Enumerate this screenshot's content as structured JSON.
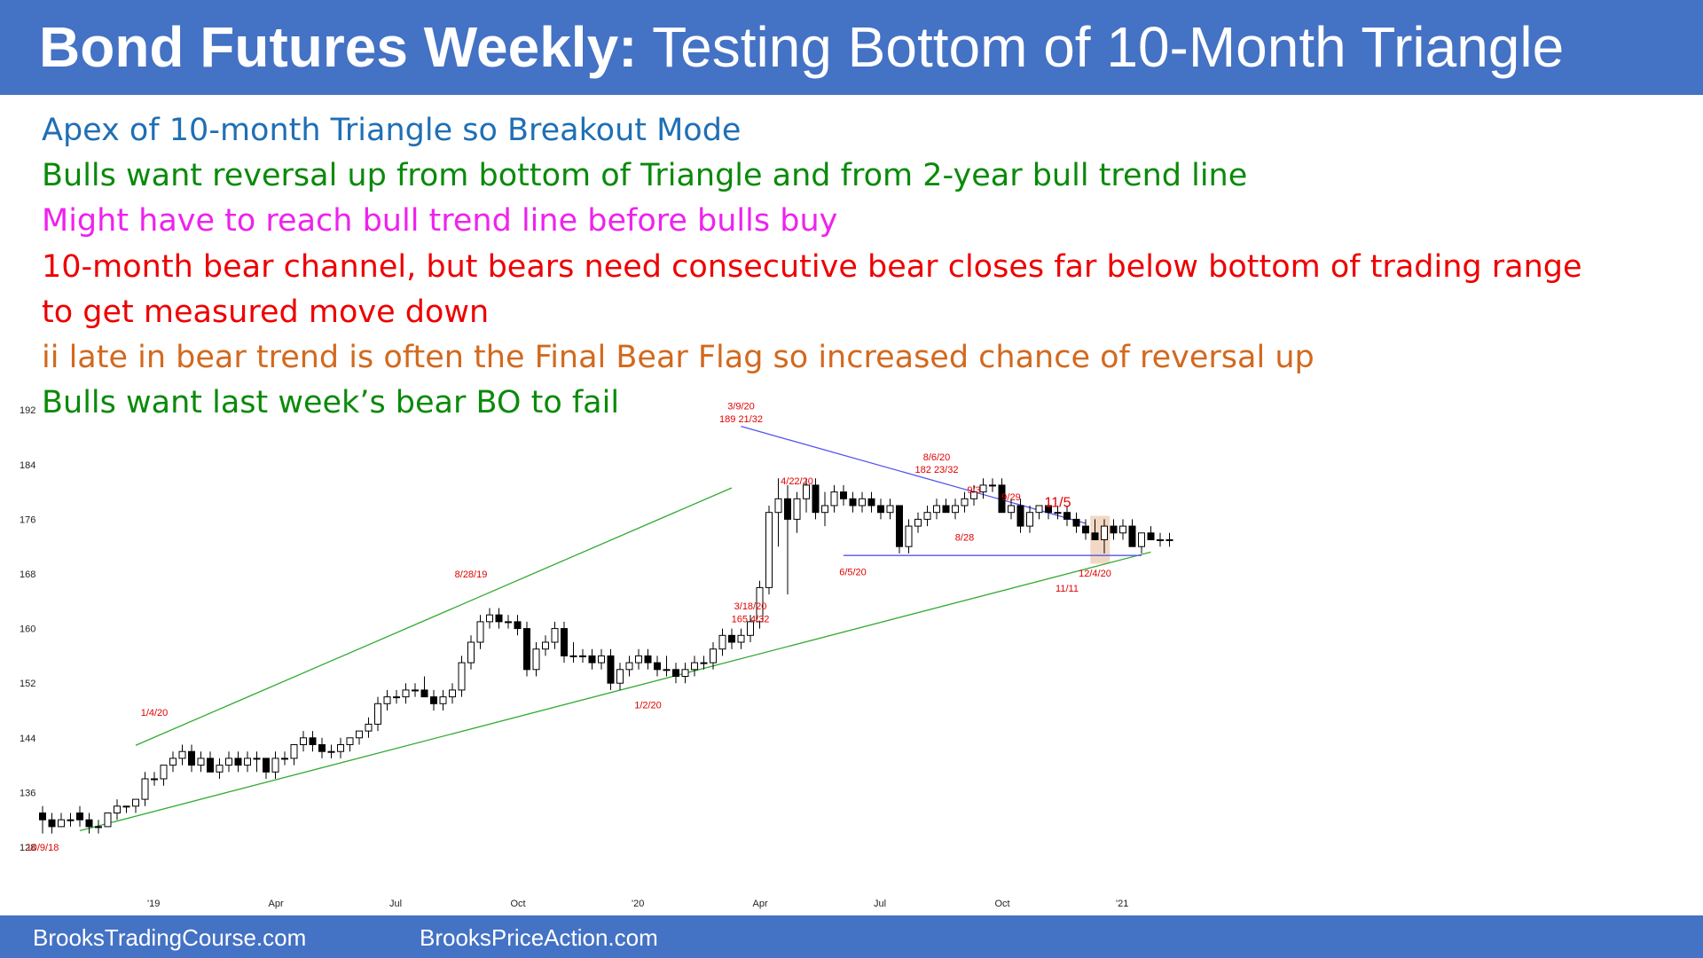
{
  "header": {
    "title_bold": "Bond Futures Weekly:",
    "title_rest": " Testing Bottom of 10-Month Triangle",
    "bg_color": "#4472c4"
  },
  "bullets": [
    {
      "text": "Apex of 10-month Triangle so Breakout Mode",
      "color": "#1f6fb5"
    },
    {
      "text": "Bulls want reversal up from bottom of Triangle and from 2-year bull trend line",
      "color": "#0a8a0a"
    },
    {
      "text": "Might have to reach bull trend line before bulls buy",
      "color": "#ee22ee"
    },
    {
      "text": "10-month bear channel, but bears need consecutive bear closes far below bottom of trading range",
      "color": "#ee0000"
    },
    {
      "text": "to get measured move down",
      "color": "#ee0000"
    },
    {
      "text": "ii late in bear trend is often the Final Bear Flag so increased chance of reversal up",
      "color": "#d2691e"
    },
    {
      "text": "Bulls want last week’s bear BO to fail",
      "color": "#0a8a0a"
    }
  ],
  "footer": {
    "left": "BrooksTradingCourse.com",
    "right": "BrooksPriceAction.com"
  },
  "chart_data": {
    "type": "candlestick",
    "ylim": [
      126,
      193
    ],
    "y_ticks": [
      "192",
      "184",
      "176",
      "168",
      "160",
      "152",
      "144",
      "136",
      "128"
    ],
    "x_ticks": [
      "'19",
      "Apr",
      "Jul",
      "Oct",
      "'20",
      "Apr",
      "Jul",
      "Oct",
      "'21"
    ],
    "annotations": [
      {
        "text": "10/9/18",
        "week": 0,
        "price": 127.5
      },
      {
        "text": "1/4/20",
        "week": 12,
        "price": 147.2
      },
      {
        "text": "8/28/19",
        "week": 46,
        "price": 167.5
      },
      {
        "text": "1/2/20",
        "week": 65,
        "price": 148.3
      },
      {
        "text": "3/9/20",
        "week": 75,
        "price": 192.1
      },
      {
        "text": "189 21/32",
        "week": 75,
        "price": 190.2
      },
      {
        "text": "3/18/20",
        "week": 76,
        "price": 162.8
      },
      {
        "text": "165 4/32",
        "week": 76,
        "price": 160.9
      },
      {
        "text": "4/22/20",
        "week": 81,
        "price": 181.1
      },
      {
        "text": "6/5/20",
        "week": 87,
        "price": 167.8
      },
      {
        "text": "8/6/20",
        "week": 96,
        "price": 184.6
      },
      {
        "text": "182 23/32",
        "week": 96,
        "price": 182.8
      },
      {
        "text": "9/3",
        "week": 100,
        "price": 179.8
      },
      {
        "text": "9/29",
        "week": 104,
        "price": 178.8
      },
      {
        "text": "8/28",
        "week": 99,
        "price": 172.9
      },
      {
        "text": "11/5",
        "week": 109,
        "price": 177.8,
        "size": "large"
      },
      {
        "text": "11/11",
        "week": 110,
        "price": 165.4
      },
      {
        "text": "12/4/20",
        "week": 113,
        "price": 167.6
      }
    ],
    "trend_lines": [
      {
        "name": "upper channel",
        "color": "#33aa33",
        "from": {
          "week": 10,
          "price": 142.9
        },
        "to": {
          "week": 74,
          "price": 180.6
        }
      },
      {
        "name": "2-year bull trend line",
        "color": "#33aa33",
        "from": {
          "week": 4,
          "price": 130.4
        },
        "to": {
          "week": 119,
          "price": 171.2
        }
      },
      {
        "name": "triangle top",
        "color": "#5555ee",
        "from": {
          "week": 75,
          "price": 189.6
        },
        "to": {
          "week": 112,
          "price": 175.4
        }
      },
      {
        "name": "triangle bottom",
        "color": "#5555ee",
        "from": {
          "week": 86,
          "price": 170.7
        },
        "to": {
          "week": 118,
          "price": 170.7
        }
      }
    ],
    "highlight": {
      "from_week": 112.5,
      "to_week": 114.6,
      "price_low": 169.5,
      "price_high": 176.5,
      "color": "#f2d8c4"
    },
    "candles": [
      [
        133,
        134,
        130,
        132
      ],
      [
        132,
        133,
        130,
        131
      ],
      [
        131,
        133,
        131,
        132
      ],
      [
        132,
        133,
        131,
        132
      ],
      [
        133,
        134,
        131,
        132
      ],
      [
        132,
        133,
        130,
        131
      ],
      [
        131,
        132,
        130,
        131
      ],
      [
        131,
        133,
        131,
        133
      ],
      [
        133,
        135,
        132,
        134
      ],
      [
        134,
        134,
        133,
        134
      ],
      [
        134,
        135,
        133,
        135
      ],
      [
        135,
        139,
        134,
        138
      ],
      [
        138,
        139,
        137,
        138
      ],
      [
        138,
        140,
        137,
        140
      ],
      [
        140,
        142,
        139,
        141
      ],
      [
        141,
        143,
        140,
        142
      ],
      [
        142,
        143,
        139,
        140
      ],
      [
        140,
        142,
        139,
        141
      ],
      [
        141,
        142,
        139,
        139
      ],
      [
        139,
        141,
        138,
        140
      ],
      [
        140,
        142,
        139,
        141
      ],
      [
        141,
        142,
        139,
        140
      ],
      [
        140,
        142,
        139,
        141
      ],
      [
        141,
        142,
        139,
        141
      ],
      [
        141,
        141,
        138,
        139
      ],
      [
        139,
        142,
        138,
        141
      ],
      [
        141,
        142,
        140,
        141
      ],
      [
        141,
        143,
        140,
        143
      ],
      [
        143,
        145,
        142,
        144
      ],
      [
        144,
        145,
        142,
        143
      ],
      [
        143,
        144,
        141,
        142
      ],
      [
        142,
        143,
        141,
        142
      ],
      [
        142,
        144,
        141,
        143
      ],
      [
        143,
        144,
        142,
        144
      ],
      [
        144,
        145,
        143,
        145
      ],
      [
        145,
        147,
        144,
        146
      ],
      [
        146,
        150,
        145,
        149
      ],
      [
        149,
        151,
        148,
        150
      ],
      [
        150,
        151,
        149,
        150
      ],
      [
        150,
        152,
        149,
        151
      ],
      [
        151,
        152,
        150,
        151
      ],
      [
        151,
        153,
        150,
        150
      ],
      [
        150,
        151,
        148,
        149
      ],
      [
        149,
        151,
        148,
        150
      ],
      [
        150,
        152,
        149,
        151
      ],
      [
        151,
        156,
        150,
        155
      ],
      [
        155,
        159,
        154,
        158
      ],
      [
        158,
        162,
        157,
        161
      ],
      [
        161,
        163,
        160,
        162
      ],
      [
        162,
        163,
        160,
        161
      ],
      [
        161,
        162,
        160,
        161
      ],
      [
        161,
        162,
        159,
        160
      ],
      [
        160,
        161,
        153,
        154
      ],
      [
        154,
        158,
        153,
        157
      ],
      [
        157,
        159,
        156,
        158
      ],
      [
        158,
        161,
        157,
        160
      ],
      [
        160,
        161,
        155,
        156
      ],
      [
        156,
        158,
        155,
        156
      ],
      [
        156,
        157,
        155,
        156
      ],
      [
        156,
        157,
        154,
        155
      ],
      [
        155,
        157,
        154,
        156
      ],
      [
        156,
        157,
        151,
        152
      ],
      [
        152,
        155,
        151,
        154
      ],
      [
        154,
        156,
        153,
        155
      ],
      [
        155,
        157,
        154,
        156
      ],
      [
        156,
        157,
        154,
        155
      ],
      [
        155,
        156,
        153,
        154
      ],
      [
        154,
        156,
        153,
        154
      ],
      [
        154,
        155,
        152,
        153
      ],
      [
        153,
        155,
        152,
        154
      ],
      [
        154,
        156,
        153,
        155
      ],
      [
        155,
        156,
        154,
        155
      ],
      [
        155,
        158,
        154,
        157
      ],
      [
        157,
        160,
        156,
        159
      ],
      [
        159,
        160,
        157,
        158
      ],
      [
        158,
        160,
        157,
        159
      ],
      [
        159,
        162,
        158,
        161
      ],
      [
        161,
        167,
        160,
        166
      ],
      [
        166,
        178,
        165,
        177
      ],
      [
        177,
        182,
        172,
        179
      ],
      [
        179,
        181,
        165,
        176
      ],
      [
        176,
        180,
        174,
        179
      ],
      [
        179,
        182,
        177,
        181
      ],
      [
        181,
        182,
        176,
        177
      ],
      [
        177,
        180,
        175,
        178
      ],
      [
        178,
        181,
        177,
        180
      ],
      [
        180,
        181,
        178,
        179
      ],
      [
        179,
        180,
        177,
        178
      ],
      [
        178,
        180,
        177,
        179
      ],
      [
        179,
        180,
        177,
        178
      ],
      [
        178,
        179,
        176,
        177
      ],
      [
        177,
        179,
        176,
        178
      ],
      [
        178,
        178,
        171,
        172
      ],
      [
        172,
        176,
        171,
        175
      ],
      [
        175,
        177,
        174,
        176
      ],
      [
        176,
        178,
        175,
        177
      ],
      [
        177,
        179,
        176,
        178
      ],
      [
        178,
        179,
        177,
        177
      ],
      [
        177,
        179,
        176,
        178
      ],
      [
        178,
        180,
        177,
        179
      ],
      [
        179,
        181,
        178,
        180
      ],
      [
        180,
        182,
        179,
        181
      ],
      [
        181,
        182,
        180,
        181
      ],
      [
        181,
        182,
        177,
        177
      ],
      [
        177,
        179,
        176,
        178
      ],
      [
        178,
        179,
        174,
        175
      ],
      [
        175,
        178,
        174,
        177
      ],
      [
        177,
        178,
        176,
        178
      ],
      [
        178,
        179,
        176,
        177
      ],
      [
        177,
        178,
        176,
        177
      ],
      [
        177,
        178,
        175,
        176
      ],
      [
        176,
        177,
        174,
        175
      ],
      [
        175,
        176,
        173,
        174
      ],
      [
        174,
        176,
        173,
        173
      ],
      [
        173,
        176,
        171,
        175
      ],
      [
        175,
        176,
        173,
        174
      ],
      [
        174,
        176,
        173,
        175
      ],
      [
        175,
        176,
        172,
        172
      ],
      [
        172,
        174,
        171,
        174
      ],
      [
        174,
        175,
        173,
        173
      ],
      [
        173,
        174,
        172,
        173
      ],
      [
        173,
        174,
        172,
        173
      ]
    ]
  }
}
